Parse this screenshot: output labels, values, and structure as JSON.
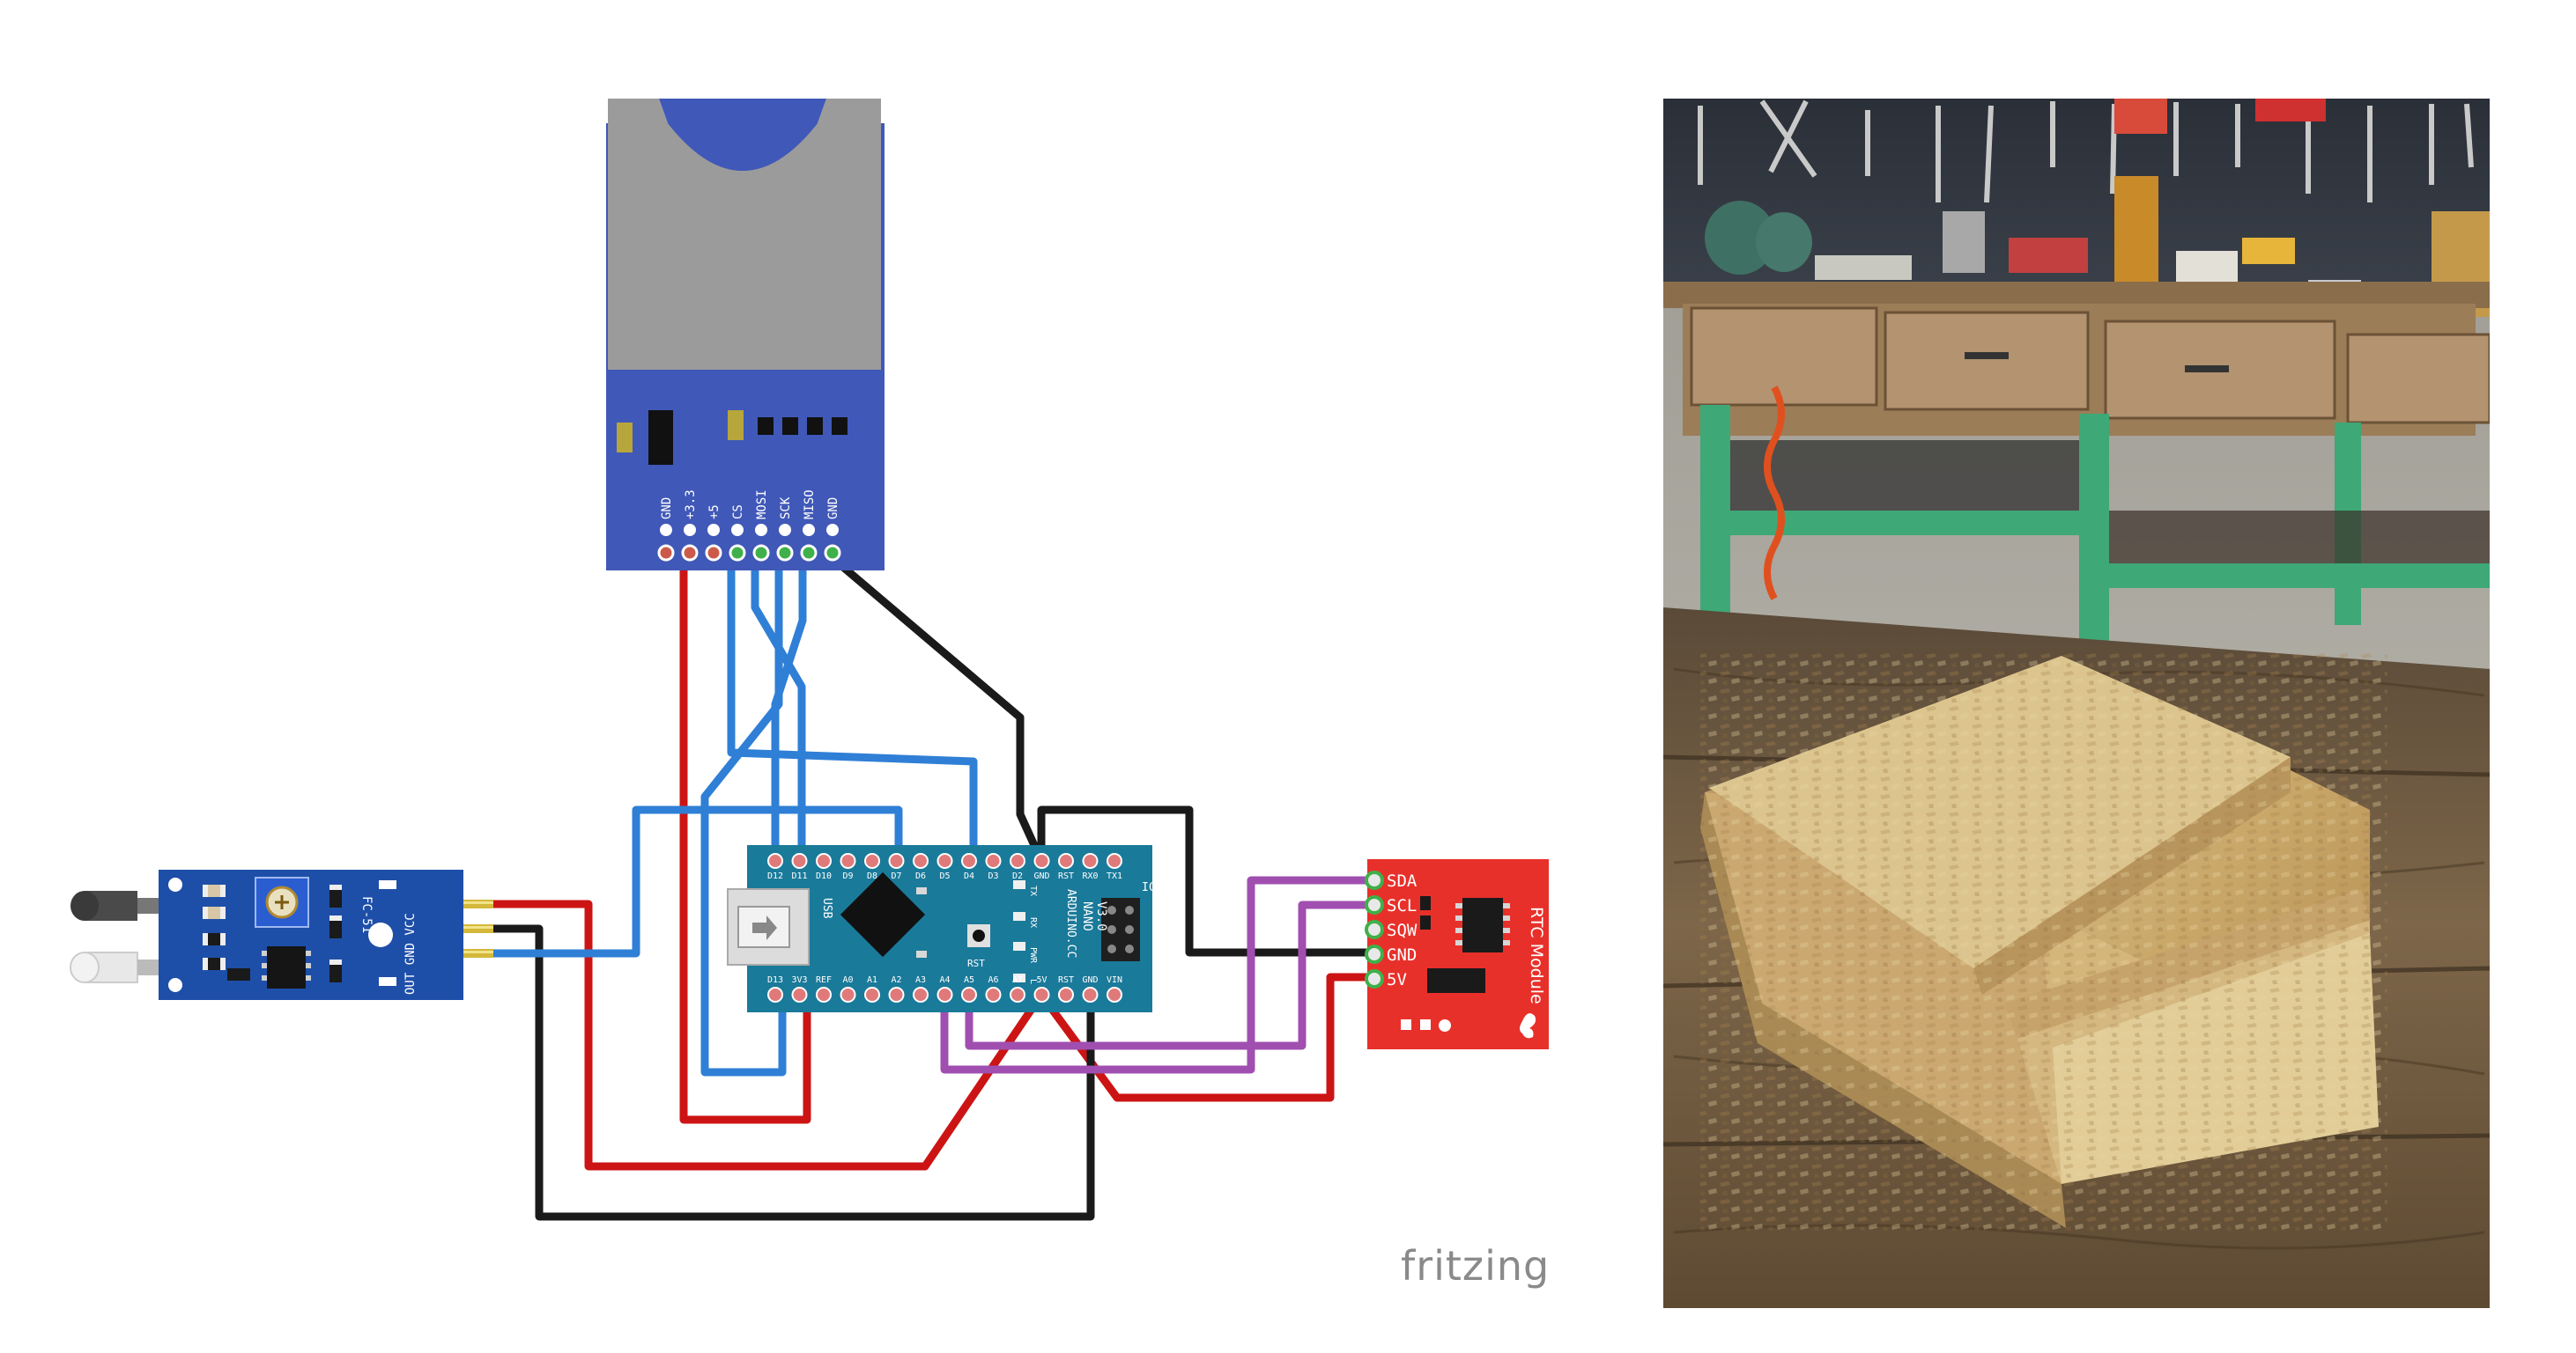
{
  "sd_module": {
    "pins": [
      "GND",
      "+3.3",
      "+5",
      "CS",
      "MOSI",
      "SCK",
      "MISO",
      "GND"
    ]
  },
  "arduino": {
    "brand": "ARDUINO.CC",
    "model_line1": "NANO",
    "model_line2": "V3.0",
    "icsp": "ICSP",
    "usb": "USB",
    "rst_label": "RST",
    "led_labels": [
      "TX",
      "RX",
      "PWR",
      "L"
    ],
    "top_pins": [
      "D12",
      "D11",
      "D10",
      "D9",
      "D8",
      "D7",
      "D6",
      "D5",
      "D4",
      "D3",
      "D2",
      "GND",
      "RST",
      "RX0",
      "TX1"
    ],
    "bottom_pins": [
      "D13",
      "3V3",
      "REF",
      "A0",
      "A1",
      "A2",
      "A3",
      "A4",
      "A5",
      "A6",
      "A7",
      "5V",
      "RST",
      "GND",
      "VIN"
    ]
  },
  "ir_sensor": {
    "model": "FC-51",
    "pins": [
      "OUT",
      "GND",
      "VCC"
    ]
  },
  "rtc_module": {
    "title": "RTC Module",
    "pins": [
      "SDA",
      "SCL",
      "SQW",
      "GND",
      "5V"
    ]
  },
  "watermark": "fritzing",
  "colors": {
    "wire_red": "#cc1414",
    "wire_blue": "#2f7fd6",
    "wire_black": "#1a1a1a",
    "wire_purple": "#a04fb0",
    "sd_board": "#4058b8",
    "nano_board": "#1a7a9a",
    "ir_board": "#1e4fa8",
    "rtc_board": "#e8302a"
  }
}
